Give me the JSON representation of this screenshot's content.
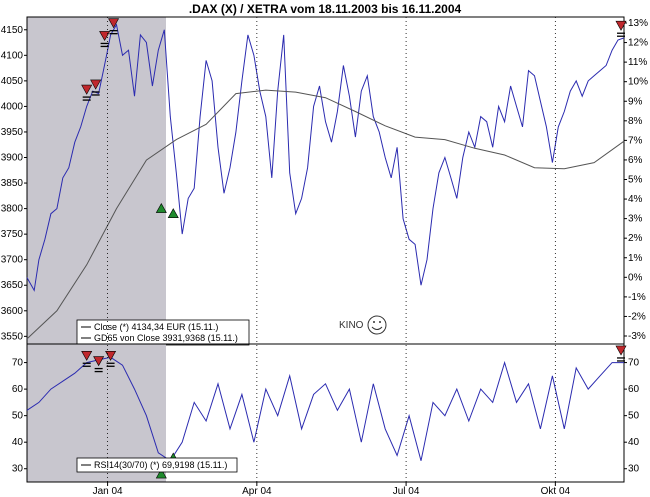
{
  "title": ".DAX (X) / XETRA vom 18.11.2003 bis 16.11.2004",
  "watermark": "KINO",
  "colors": {
    "close_line": "#2b2bb0",
    "gd_line": "#555555",
    "rsi_line": "#2b2bb0",
    "shade": "#c8c6ce",
    "sell_marker": "#c0282d",
    "buy_marker": "#1f8a2d",
    "frame": "#000000"
  },
  "chart_data": [
    {
      "type": "line",
      "panel": "price",
      "y_left_ticks": [
        3550,
        3600,
        3650,
        3700,
        3750,
        3800,
        3850,
        3900,
        3950,
        4000,
        4050,
        4100,
        4150
      ],
      "y_right_ticks": [
        "13%",
        "12%",
        "11%",
        "10%",
        "9%",
        "8%",
        "7%",
        "6%",
        "5%",
        "4%",
        "3%",
        "2%",
        "1%",
        "0%",
        "-1%",
        "-2%",
        "-3%"
      ],
      "x_ticks": [
        "Jan 04",
        "Apr 04",
        "Jul 04",
        "Okt 04"
      ],
      "ylim": [
        3535,
        4175
      ],
      "shaded_range": [
        "18.11.2003",
        "20.02.2004"
      ],
      "legend": [
        "Close (*) 4134,34 EUR (15.11.)",
        "GD65 von Close 3931,9368 (15.11.)"
      ],
      "series": [
        {
          "name": "Close (*) 4134,34 EUR (15.11.)",
          "t": [
            0,
            0.012,
            0.02,
            0.03,
            0.04,
            0.05,
            0.06,
            0.07,
            0.08,
            0.09,
            0.1,
            0.11,
            0.12,
            0.128,
            0.135,
            0.14,
            0.15,
            0.16,
            0.17,
            0.18,
            0.19,
            0.2,
            0.21,
            0.22,
            0.23,
            0.24,
            0.25,
            0.26,
            0.27,
            0.28,
            0.29,
            0.3,
            0.31,
            0.32,
            0.33,
            0.34,
            0.35,
            0.36,
            0.37,
            0.38,
            0.39,
            0.4,
            0.41,
            0.42,
            0.43,
            0.44,
            0.45,
            0.46,
            0.47,
            0.48,
            0.49,
            0.5,
            0.51,
            0.52,
            0.53,
            0.54,
            0.55,
            0.56,
            0.57,
            0.58,
            0.59,
            0.6,
            0.61,
            0.62,
            0.63,
            0.64,
            0.65,
            0.66,
            0.67,
            0.68,
            0.69,
            0.7,
            0.71,
            0.72,
            0.73,
            0.74,
            0.75,
            0.76,
            0.77,
            0.78,
            0.79,
            0.8,
            0.81,
            0.82,
            0.83,
            0.84,
            0.85,
            0.86,
            0.87,
            0.88,
            0.89,
            0.9,
            0.91,
            0.92,
            0.93,
            0.94,
            0.95,
            0.96,
            0.97,
            0.98,
            0.99,
            1.0
          ],
          "values": [
            3665,
            3640,
            3700,
            3740,
            3790,
            3800,
            3860,
            3880,
            3930,
            3960,
            4000,
            4030,
            4025,
            4070,
            4110,
            4140,
            4160,
            4100,
            4110,
            4020,
            4140,
            4125,
            4040,
            4110,
            4150,
            3980,
            3870,
            3750,
            3820,
            3840,
            3980,
            4090,
            4050,
            3920,
            3830,
            3880,
            3950,
            4050,
            4140,
            4100,
            4030,
            3980,
            3860,
            4030,
            4140,
            3870,
            3790,
            3820,
            3880,
            4000,
            4040,
            3970,
            3930,
            3990,
            4080,
            4020,
            3940,
            4030,
            4060,
            3980,
            3950,
            3900,
            3860,
            3920,
            3780,
            3740,
            3730,
            3650,
            3700,
            3800,
            3870,
            3900,
            3860,
            3820,
            3900,
            3950,
            3920,
            3980,
            3970,
            3920,
            4000,
            3970,
            4040,
            4000,
            3960,
            4070,
            4060,
            4010,
            3960,
            3890,
            3960,
            3990,
            4030,
            4050,
            4020,
            4050,
            4060,
            4070,
            4080,
            4110,
            4130,
            4134
          ]
        },
        {
          "name": "GD65 von Close 3931,9368 (15.11.)",
          "t": [
            0,
            0.05,
            0.1,
            0.15,
            0.2,
            0.25,
            0.3,
            0.35,
            0.4,
            0.45,
            0.5,
            0.55,
            0.6,
            0.65,
            0.7,
            0.75,
            0.8,
            0.85,
            0.9,
            0.95,
            1.0
          ],
          "values": [
            3545,
            3600,
            3690,
            3800,
            3895,
            3935,
            3965,
            4025,
            4032,
            4028,
            4017,
            3990,
            3962,
            3940,
            3935,
            3918,
            3905,
            3880,
            3878,
            3890,
            3932
          ]
        }
      ],
      "markers": [
        {
          "type": "sell",
          "t": 0.145,
          "value": 4160
        },
        {
          "type": "sell",
          "t": 0.13,
          "value": 4135
        },
        {
          "type": "sell",
          "t": 0.115,
          "value": 4040
        },
        {
          "type": "sell",
          "t": 0.1,
          "value": 4030
        },
        {
          "type": "buy",
          "t": 0.225,
          "value": 3800
        },
        {
          "type": "buy",
          "t": 0.245,
          "value": 3790
        },
        {
          "type": "sell",
          "t": 0.995,
          "value": 4155
        }
      ]
    },
    {
      "type": "line",
      "panel": "rsi",
      "y_left_ticks": [
        30,
        40,
        50,
        60,
        70
      ],
      "y_right_ticks": [
        30,
        40,
        50,
        60,
        70
      ],
      "ylim": [
        25,
        77
      ],
      "legend": [
        "RSI14(30/70) (*) 69,9198 (15.11.)"
      ],
      "series": [
        {
          "name": "RSI14(30/70) (*) 69,9198 (15.11.)",
          "t": [
            0,
            0.02,
            0.04,
            0.06,
            0.08,
            0.1,
            0.12,
            0.14,
            0.16,
            0.18,
            0.2,
            0.22,
            0.24,
            0.26,
            0.28,
            0.3,
            0.32,
            0.34,
            0.36,
            0.38,
            0.4,
            0.42,
            0.44,
            0.46,
            0.48,
            0.5,
            0.52,
            0.54,
            0.56,
            0.58,
            0.6,
            0.62,
            0.64,
            0.66,
            0.68,
            0.7,
            0.72,
            0.74,
            0.76,
            0.78,
            0.8,
            0.82,
            0.84,
            0.86,
            0.88,
            0.9,
            0.92,
            0.94,
            0.96,
            0.98,
            1.0
          ],
          "values": [
            52,
            55,
            60,
            63,
            66,
            70,
            71,
            72,
            69,
            60,
            50,
            36,
            33,
            40,
            55,
            48,
            62,
            45,
            58,
            40,
            60,
            50,
            65,
            45,
            58,
            62,
            52,
            60,
            40,
            62,
            45,
            35,
            50,
            33,
            55,
            50,
            60,
            48,
            60,
            55,
            70,
            55,
            62,
            45,
            65,
            45,
            68,
            60,
            65,
            70,
            70
          ]
        }
      ],
      "markers": [
        {
          "type": "sell",
          "t": 0.1,
          "value": 72
        },
        {
          "type": "sell",
          "t": 0.12,
          "value": 70
        },
        {
          "type": "sell",
          "t": 0.14,
          "value": 72
        },
        {
          "type": "buy",
          "t": 0.225,
          "value": 28
        },
        {
          "type": "buy",
          "t": 0.245,
          "value": 34
        },
        {
          "type": "sell",
          "t": 0.995,
          "value": 74
        }
      ]
    }
  ]
}
